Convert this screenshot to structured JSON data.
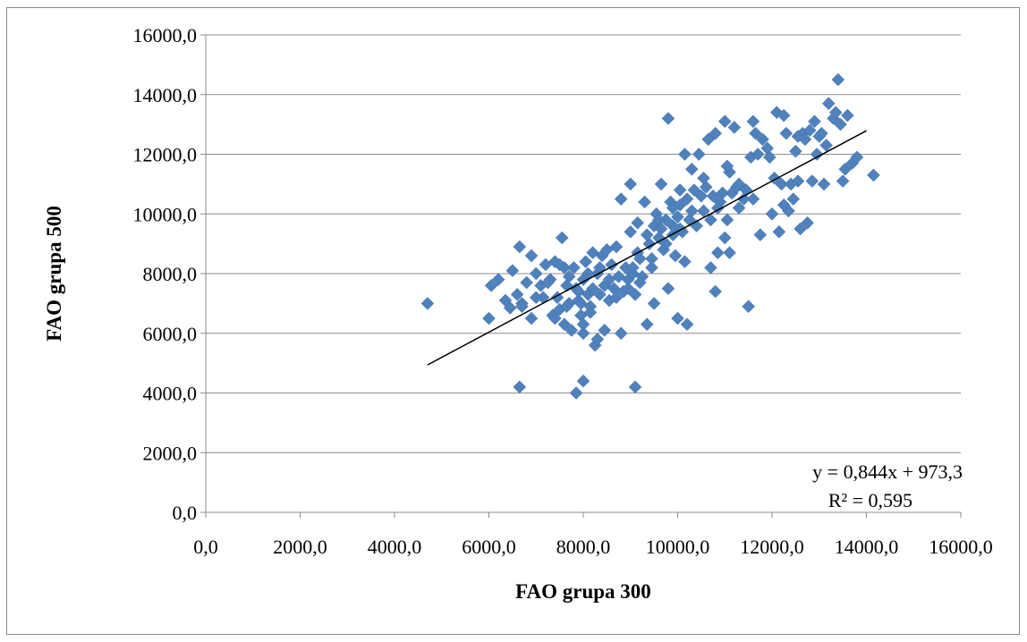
{
  "chart_data": {
    "type": "scatter",
    "xlabel": "FAO grupa 300",
    "ylabel": "FAO grupa 500",
    "xlim": [
      0,
      16000
    ],
    "ylim": [
      0,
      16000
    ],
    "x_ticks": [
      "0,0",
      "2000,0",
      "4000,0",
      "6000,0",
      "8000,0",
      "10000,0",
      "12000,0",
      "14000,0",
      "16000,0"
    ],
    "y_ticks": [
      "0,0",
      "2000,0",
      "4000,0",
      "6000,0",
      "8000,0",
      "10000,0",
      "12000,0",
      "14000,0",
      "16000,0"
    ],
    "grid": "horizontal",
    "marker_color": "#4f81bd",
    "trendline": {
      "slope": 0.844,
      "intercept": 973.3,
      "x_range": [
        4700,
        14000
      ],
      "color": "#000000"
    },
    "equation_text": "y = 0,844x + 973,3",
    "r2_text": "R² = 0,595",
    "points": [
      [
        4700,
        7000
      ],
      [
        6000,
        6500
      ],
      [
        6050,
        7600
      ],
      [
        6200,
        7800
      ],
      [
        6350,
        7100
      ],
      [
        6450,
        6850
      ],
      [
        6500,
        8100
      ],
      [
        6600,
        7300
      ],
      [
        6650,
        8900
      ],
      [
        6700,
        7000
      ],
      [
        6800,
        7700
      ],
      [
        6900,
        8600
      ],
      [
        6900,
        6500
      ],
      [
        7000,
        8000
      ],
      [
        7100,
        7600
      ],
      [
        7150,
        7200
      ],
      [
        7200,
        8300
      ],
      [
        7300,
        7800
      ],
      [
        7350,
        6600
      ],
      [
        7400,
        8400
      ],
      [
        7450,
        7200
      ],
      [
        7500,
        6800
      ],
      [
        7550,
        9200
      ],
      [
        7600,
        8200
      ],
      [
        7600,
        6300
      ],
      [
        7650,
        7600
      ],
      [
        7700,
        7000
      ],
      [
        7750,
        6100
      ],
      [
        7800,
        8200
      ],
      [
        7850,
        7500
      ],
      [
        7900,
        7100
      ],
      [
        7950,
        6600
      ],
      [
        8000,
        6000
      ],
      [
        8000,
        7800
      ],
      [
        8050,
        8400
      ],
      [
        8100,
        7300
      ],
      [
        8150,
        6900
      ],
      [
        8200,
        8700
      ],
      [
        8200,
        7500
      ],
      [
        8250,
        5600
      ],
      [
        8300,
        8000
      ],
      [
        8350,
        7300
      ],
      [
        8400,
        8600
      ],
      [
        8450,
        7600
      ],
      [
        8500,
        8800
      ],
      [
        8550,
        7100
      ],
      [
        8600,
        8300
      ],
      [
        8650,
        7500
      ],
      [
        8700,
        8900
      ],
      [
        8750,
        7900
      ],
      [
        8800,
        10500
      ],
      [
        8850,
        7400
      ],
      [
        8900,
        8200
      ],
      [
        8950,
        7800
      ],
      [
        9000,
        11000
      ],
      [
        9000,
        9400
      ],
      [
        9050,
        8000
      ],
      [
        9100,
        7300
      ],
      [
        9150,
        9700
      ],
      [
        9200,
        8500
      ],
      [
        9250,
        7900
      ],
      [
        9300,
        10400
      ],
      [
        9350,
        6300
      ],
      [
        9400,
        9000
      ],
      [
        9450,
        8200
      ],
      [
        9500,
        9600
      ],
      [
        9500,
        7000
      ],
      [
        9550,
        10000
      ],
      [
        9600,
        9200
      ],
      [
        9650,
        11000
      ],
      [
        9700,
        8800
      ],
      [
        9750,
        9800
      ],
      [
        9800,
        13200
      ],
      [
        9800,
        7500
      ],
      [
        9850,
        10400
      ],
      [
        9900,
        9300
      ],
      [
        9950,
        8600
      ],
      [
        10000,
        9900
      ],
      [
        10000,
        6500
      ],
      [
        10050,
        10300
      ],
      [
        10100,
        9400
      ],
      [
        10150,
        12000
      ],
      [
        10150,
        8400
      ],
      [
        10200,
        10500
      ],
      [
        10200,
        6300
      ],
      [
        10250,
        9800
      ],
      [
        10300,
        11500
      ],
      [
        10350,
        10800
      ],
      [
        10400,
        9600
      ],
      [
        10450,
        12000
      ],
      [
        10500,
        10600
      ],
      [
        10550,
        10100
      ],
      [
        10600,
        10900
      ],
      [
        10650,
        12500
      ],
      [
        10700,
        8200
      ],
      [
        10700,
        9800
      ],
      [
        10750,
        10600
      ],
      [
        10800,
        7400
      ],
      [
        10800,
        12700
      ],
      [
        10850,
        8700
      ],
      [
        10900,
        10400
      ],
      [
        10950,
        10700
      ],
      [
        11000,
        13100
      ],
      [
        11000,
        9200
      ],
      [
        11050,
        9800
      ],
      [
        11100,
        11400
      ],
      [
        11100,
        8700
      ],
      [
        11150,
        10700
      ],
      [
        11200,
        12900
      ],
      [
        11250,
        10900
      ],
      [
        11300,
        11000
      ],
      [
        11400,
        10500
      ],
      [
        11450,
        10800
      ],
      [
        11500,
        6900
      ],
      [
        11550,
        11900
      ],
      [
        11600,
        13100
      ],
      [
        11650,
        12700
      ],
      [
        11700,
        12000
      ],
      [
        11750,
        9300
      ],
      [
        11800,
        12500
      ],
      [
        11900,
        12200
      ],
      [
        12000,
        10000
      ],
      [
        12050,
        11200
      ],
      [
        12100,
        13400
      ],
      [
        12150,
        9400
      ],
      [
        12200,
        11000
      ],
      [
        12250,
        13300
      ],
      [
        12300,
        12700
      ],
      [
        12350,
        10100
      ],
      [
        12400,
        11000
      ],
      [
        12450,
        10500
      ],
      [
        12500,
        12100
      ],
      [
        12550,
        11100
      ],
      [
        12600,
        9500
      ],
      [
        12650,
        12700
      ],
      [
        12700,
        12500
      ],
      [
        12750,
        9700
      ],
      [
        12800,
        12800
      ],
      [
        12850,
        11100
      ],
      [
        12900,
        13100
      ],
      [
        12950,
        12000
      ],
      [
        13000,
        12600
      ],
      [
        13050,
        12700
      ],
      [
        13100,
        11000
      ],
      [
        13150,
        12300
      ],
      [
        13200,
        13700
      ],
      [
        13300,
        13200
      ],
      [
        13350,
        13400
      ],
      [
        13400,
        14500
      ],
      [
        13450,
        13000
      ],
      [
        13500,
        11100
      ],
      [
        13550,
        11500
      ],
      [
        13600,
        13300
      ],
      [
        13700,
        11700
      ],
      [
        13800,
        11900
      ],
      [
        14150,
        11300
      ],
      [
        7400,
        6500
      ],
      [
        7650,
        6900
      ],
      [
        7900,
        7400
      ],
      [
        8000,
        6300
      ],
      [
        8150,
        6700
      ],
      [
        8300,
        5800
      ],
      [
        8450,
        6100
      ],
      [
        8700,
        7200
      ],
      [
        8950,
        7500
      ],
      [
        9050,
        8200
      ],
      [
        9200,
        7700
      ],
      [
        9450,
        8500
      ],
      [
        9600,
        9800
      ],
      [
        9750,
        9000
      ],
      [
        9900,
        10200
      ],
      [
        10050,
        9500
      ],
      [
        6650,
        4200
      ],
      [
        7850,
        4000
      ],
      [
        8000,
        4400
      ],
      [
        9100,
        4200
      ],
      [
        6700,
        6900
      ],
      [
        7000,
        7200
      ],
      [
        7250,
        7700
      ],
      [
        7500,
        8300
      ],
      [
        7700,
        7900
      ],
      [
        7950,
        7000
      ],
      [
        8100,
        8000
      ],
      [
        8350,
        8200
      ],
      [
        8550,
        7800
      ],
      [
        8800,
        6000
      ],
      [
        9150,
        8700
      ],
      [
        9350,
        9300
      ],
      [
        9650,
        9500
      ],
      [
        9900,
        9600
      ],
      [
        10050,
        10800
      ],
      [
        10300,
        10100
      ],
      [
        10550,
        11200
      ],
      [
        10850,
        10200
      ],
      [
        11050,
        11600
      ],
      [
        11300,
        10200
      ],
      [
        11600,
        10500
      ],
      [
        11950,
        11900
      ],
      [
        12250,
        10300
      ],
      [
        12550,
        12600
      ]
    ]
  }
}
